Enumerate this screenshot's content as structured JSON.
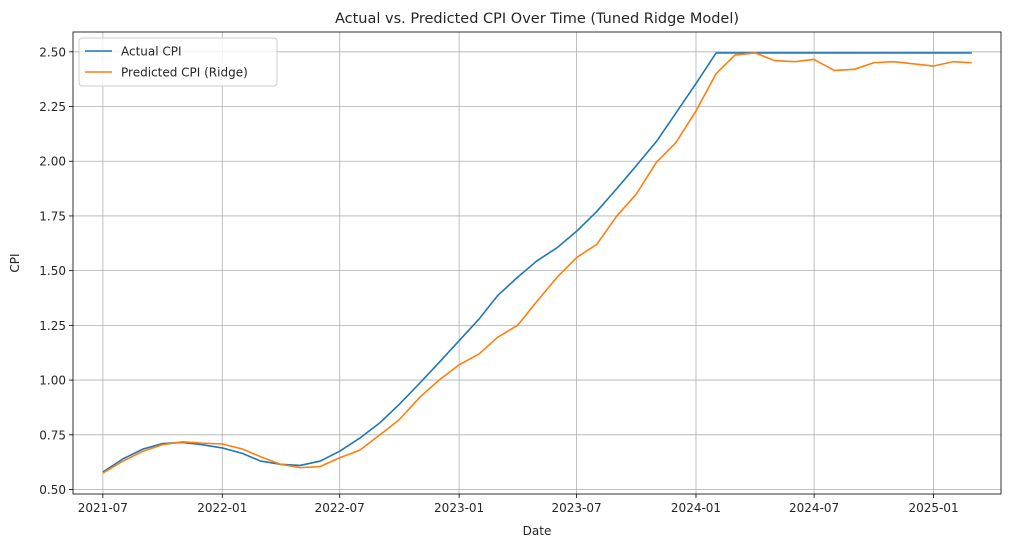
{
  "chart_data": {
    "type": "line",
    "title": "Actual vs. Predicted CPI Over Time (Tuned Ridge Model)",
    "xlabel": "Date",
    "ylabel": "CPI",
    "x": [
      "2021-07",
      "2021-08",
      "2021-09",
      "2021-10",
      "2021-11",
      "2021-12",
      "2022-01",
      "2022-02",
      "2022-03",
      "2022-04",
      "2022-05",
      "2022-06",
      "2022-07",
      "2022-08",
      "2022-09",
      "2022-10",
      "2022-11",
      "2022-12",
      "2023-01",
      "2023-02",
      "2023-03",
      "2023-04",
      "2023-05",
      "2023-06",
      "2023-07",
      "2023-08",
      "2023-09",
      "2023-10",
      "2023-11",
      "2023-12",
      "2024-01",
      "2024-02",
      "2024-03",
      "2024-04",
      "2024-05",
      "2024-06",
      "2024-07",
      "2024-08",
      "2024-09",
      "2024-10",
      "2024-11",
      "2024-12",
      "2025-01",
      "2025-02",
      "2025-03"
    ],
    "series": [
      {
        "name": "Actual CPI",
        "color": "#1f77b4",
        "values": [
          0.58,
          0.64,
          0.685,
          0.71,
          0.715,
          0.705,
          0.69,
          0.665,
          0.63,
          0.615,
          0.61,
          0.63,
          0.675,
          0.735,
          0.805,
          0.89,
          0.985,
          1.08,
          1.18,
          1.28,
          1.385,
          1.47,
          1.545,
          1.605,
          1.68,
          1.77,
          1.875,
          1.98,
          2.09,
          2.22,
          2.355,
          2.495,
          2.495,
          2.495,
          2.495,
          2.495,
          2.495,
          2.495,
          2.495,
          2.495,
          2.495,
          2.495,
          2.495,
          2.495,
          2.495
        ]
      },
      {
        "name": "Predicted CPI (Ridge)",
        "color": "#ff7f0e",
        "values": [
          0.575,
          0.63,
          0.675,
          0.705,
          0.718,
          0.712,
          0.708,
          0.685,
          0.65,
          0.615,
          0.6,
          0.605,
          0.645,
          0.68,
          0.75,
          0.82,
          0.92,
          1.0,
          1.07,
          1.12,
          1.195,
          1.25,
          1.36,
          1.47,
          1.56,
          1.62,
          1.75,
          1.85,
          1.995,
          2.085,
          2.23,
          2.4,
          2.485,
          2.495,
          2.46,
          2.455,
          2.465,
          2.415,
          2.42,
          2.45,
          2.455,
          2.445,
          2.435,
          2.455,
          2.45
        ]
      }
    ],
    "xticks": [
      "2021-07",
      "2022-01",
      "2022-07",
      "2023-01",
      "2023-07",
      "2024-01",
      "2024-07",
      "2025-01"
    ],
    "yticks": [
      0.5,
      0.75,
      1.0,
      1.25,
      1.5,
      1.75,
      2.0,
      2.25,
      2.5
    ],
    "ytick_labels": [
      "0.50",
      "0.75",
      "1.00",
      "1.25",
      "1.50",
      "1.75",
      "2.00",
      "2.25",
      "2.50"
    ],
    "xlim": [
      "2021-05-16",
      "2025-04-15"
    ],
    "ylim": [
      0.4795,
      2.5905
    ],
    "grid": true,
    "legend_position": "top-left"
  }
}
